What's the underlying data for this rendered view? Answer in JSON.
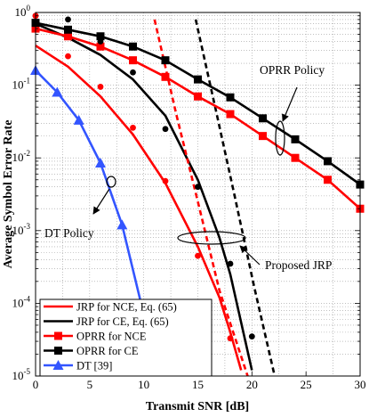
{
  "chart_data": {
    "type": "line",
    "xlabel": "Transmit SNR [dB]",
    "ylabel": "Average Symbol Error Rate",
    "xlim": [
      0,
      30
    ],
    "ylim": [
      1e-05,
      1
    ],
    "yscale": "log",
    "grid": true,
    "legend_position": "bottom-left",
    "x_ticks": [
      0,
      5,
      10,
      15,
      20,
      25,
      30
    ],
    "y_tick_labels": [
      "10^-5",
      "10^-4",
      "10^-3",
      "10^-2",
      "10^-1",
      "10^0"
    ],
    "series": [
      {
        "name": "JRP for NCE, Eq. (65)",
        "color": "#ff0000",
        "style": "solid",
        "x": [
          0,
          3,
          6,
          9,
          12,
          15,
          17,
          18,
          19
        ],
        "y": [
          0.35,
          0.18,
          0.07,
          0.021,
          0.0045,
          0.0006,
          0.00012,
          4e-05,
          1.2e-05
        ]
      },
      {
        "name": "JRP for CE, Eq. (65)",
        "color": "#000000",
        "style": "solid",
        "x": [
          0,
          3,
          6,
          9,
          12,
          15,
          17,
          18,
          20
        ],
        "y": [
          0.7,
          0.45,
          0.26,
          0.12,
          0.038,
          0.005,
          0.0008,
          0.00025,
          1.2e-05
        ]
      },
      {
        "name": "JRP NCE dashed",
        "color": "#ff0000",
        "style": "dashed",
        "legend": false,
        "x": [
          11,
          13,
          15,
          17,
          19.6
        ],
        "y": [
          0.8,
          0.04,
          0.0025,
          0.00015,
          1e-05
        ]
      },
      {
        "name": "JRP CE dashed",
        "color": "#000000",
        "style": "dashed",
        "legend": false,
        "x": [
          14.8,
          16.6,
          18.4,
          20.2,
          22.1
        ],
        "y": [
          0.8,
          0.05,
          0.003,
          0.00017,
          1e-05
        ]
      },
      {
        "name": "OPRR for NCE",
        "color": "#ff0000",
        "style": "solid",
        "marker": "square",
        "x": [
          0,
          3,
          6,
          9,
          12,
          15,
          18,
          21,
          24,
          27,
          30
        ],
        "y": [
          0.6,
          0.47,
          0.34,
          0.22,
          0.13,
          0.07,
          0.04,
          0.02,
          0.01,
          0.005,
          0.002
        ]
      },
      {
        "name": "OPRR for CE",
        "color": "#000000",
        "style": "solid",
        "marker": "square",
        "x": [
          0,
          3,
          6,
          9,
          12,
          15,
          18,
          21,
          24,
          27,
          30
        ],
        "y": [
          0.72,
          0.58,
          0.47,
          0.34,
          0.22,
          0.12,
          0.068,
          0.035,
          0.018,
          0.009,
          0.0043
        ]
      },
      {
        "name": "DT [39]",
        "color": "#3355ff",
        "style": "solid",
        "marker": "triangle",
        "x": [
          0,
          2,
          4,
          6,
          8,
          10
        ],
        "y": [
          0.16,
          0.08,
          0.033,
          0.0085,
          0.0012,
          7e-05
        ]
      }
    ],
    "simulation_points": [
      {
        "color": "#000000",
        "x": [
          0,
          3,
          6,
          9,
          12,
          15,
          18,
          20
        ],
        "y": [
          0.9,
          0.8,
          0.4,
          0.15,
          0.025,
          0.004,
          0.00035,
          3.5e-05
        ]
      },
      {
        "color": "#ff0000",
        "x": [
          0,
          3,
          6,
          9,
          12,
          15,
          18
        ],
        "y": [
          0.9,
          0.25,
          0.095,
          0.026,
          0.0048,
          0.00045,
          3.3e-05
        ]
      }
    ],
    "annotations": [
      "OPRR Policy",
      "DT Policy",
      "Proposed JRP"
    ]
  }
}
